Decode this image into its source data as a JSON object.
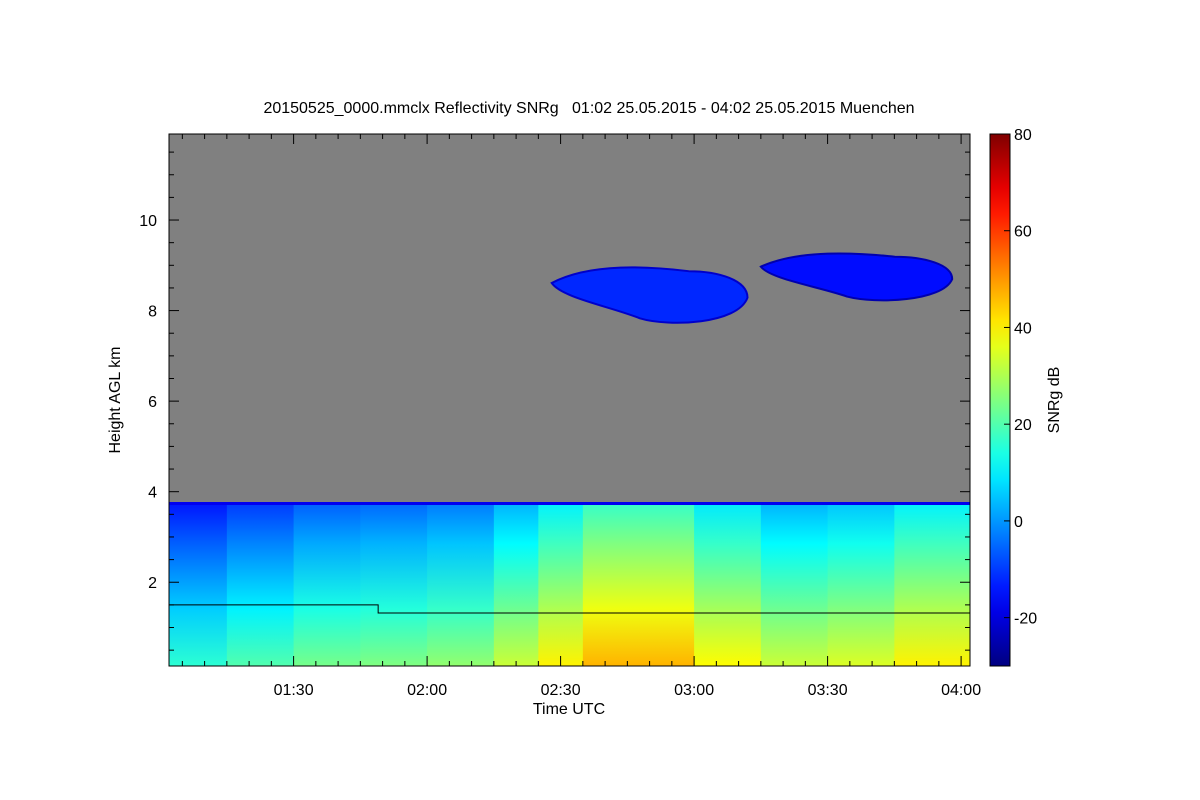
{
  "chart_data": {
    "type": "heatmap",
    "title": "20150525_0000.mmclx Reflectivity SNRg   01:02 25.05.2015 - 04:02 25.05.2015 Muenchen",
    "xlabel": "Time UTC",
    "ylabel": "Height AGL km",
    "colorbar_label": "SNRg dB",
    "x_range_minutes": [
      62,
      242
    ],
    "y_range_km": [
      0.15,
      11.9
    ],
    "x_ticks": [
      {
        "value": 90,
        "label": "01:30"
      },
      {
        "value": 120,
        "label": "02:00"
      },
      {
        "value": 150,
        "label": "02:30"
      },
      {
        "value": 180,
        "label": "03:00"
      },
      {
        "value": 210,
        "label": "03:30"
      },
      {
        "value": 240,
        "label": "04:00"
      }
    ],
    "y_ticks": [
      {
        "value": 2,
        "label": "2"
      },
      {
        "value": 4,
        "label": "4"
      },
      {
        "value": 6,
        "label": "6"
      },
      {
        "value": 8,
        "label": "8"
      },
      {
        "value": 10,
        "label": "10"
      }
    ],
    "colorbar_range": [
      -30,
      80
    ],
    "colorbar_ticks": [
      {
        "value": -20,
        "label": "-20"
      },
      {
        "value": 0,
        "label": "0"
      },
      {
        "value": 20,
        "label": "20"
      },
      {
        "value": 40,
        "label": "40"
      },
      {
        "value": 60,
        "label": "60"
      },
      {
        "value": 80,
        "label": "80"
      }
    ],
    "colormap": "jet",
    "background_color": "#808080",
    "boundary_layer_top_km": 3.75,
    "boundary_layer_snr": [
      {
        "t": 62,
        "snr": 10
      },
      {
        "t": 75,
        "snr": 14
      },
      {
        "t": 90,
        "snr": 18
      },
      {
        "t": 105,
        "snr": 22
      },
      {
        "t": 120,
        "snr": 20
      },
      {
        "t": 135,
        "snr": 26
      },
      {
        "t": 145,
        "snr": 32
      },
      {
        "t": 155,
        "snr": 40
      },
      {
        "t": 168,
        "snr": 46
      },
      {
        "t": 180,
        "snr": 40
      },
      {
        "t": 195,
        "snr": 30
      },
      {
        "t": 210,
        "snr": 28
      },
      {
        "t": 225,
        "snr": 34
      },
      {
        "t": 242,
        "snr": 38
      }
    ],
    "clouds": [
      {
        "t_start": 148,
        "t_end": 192,
        "base_km": 7.7,
        "top_km": 9.0,
        "snr": -12
      },
      {
        "t_start": 195,
        "t_end": 238,
        "base_km": 8.2,
        "top_km": 9.3,
        "snr": -15
      }
    ],
    "line_series": [
      {
        "t": 62,
        "height_km": 1.5
      },
      {
        "t": 109,
        "height_km": 1.5
      },
      {
        "t": 109,
        "height_km": 1.32
      },
      {
        "t": 242,
        "height_km": 1.32
      }
    ]
  }
}
